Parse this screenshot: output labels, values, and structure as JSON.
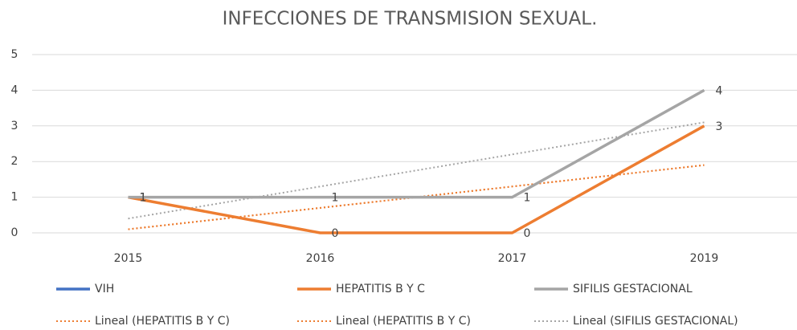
{
  "chart_data": {
    "type": "line",
    "title": "INFECCIONES DE TRANSMISION SEXUAL.",
    "categories": [
      "2015",
      "2016",
      "2017",
      "2019"
    ],
    "series": [
      {
        "name": "VIH",
        "color": "#4472c4",
        "values": [
          null,
          null,
          null,
          null
        ]
      },
      {
        "name": "HEPATITIS B Y C",
        "color": "#ed7d31",
        "values": [
          1,
          0,
          0,
          3
        ]
      },
      {
        "name": "SIFILIS GESTACIONAL",
        "color": "#a5a5a5",
        "values": [
          1,
          1,
          1,
          4
        ]
      }
    ],
    "trendlines": [
      {
        "name": "Lineal (HEPATITIS B Y C)",
        "color": "#ed7d31",
        "values": [
          0.1,
          1.9
        ]
      },
      {
        "name": "Lineal (HEPATITIS B Y C)",
        "color": "#ed7d31",
        "values": [
          0.1,
          1.9
        ]
      },
      {
        "name": "Lineal (SIFILIS GESTACIONAL)",
        "color": "#a5a5a5",
        "values": [
          0.4,
          3.1
        ]
      }
    ],
    "ylim": [
      0,
      5
    ],
    "yticks": [
      0,
      1,
      2,
      3,
      4,
      5
    ],
    "grid": true,
    "legend": "bottom"
  }
}
